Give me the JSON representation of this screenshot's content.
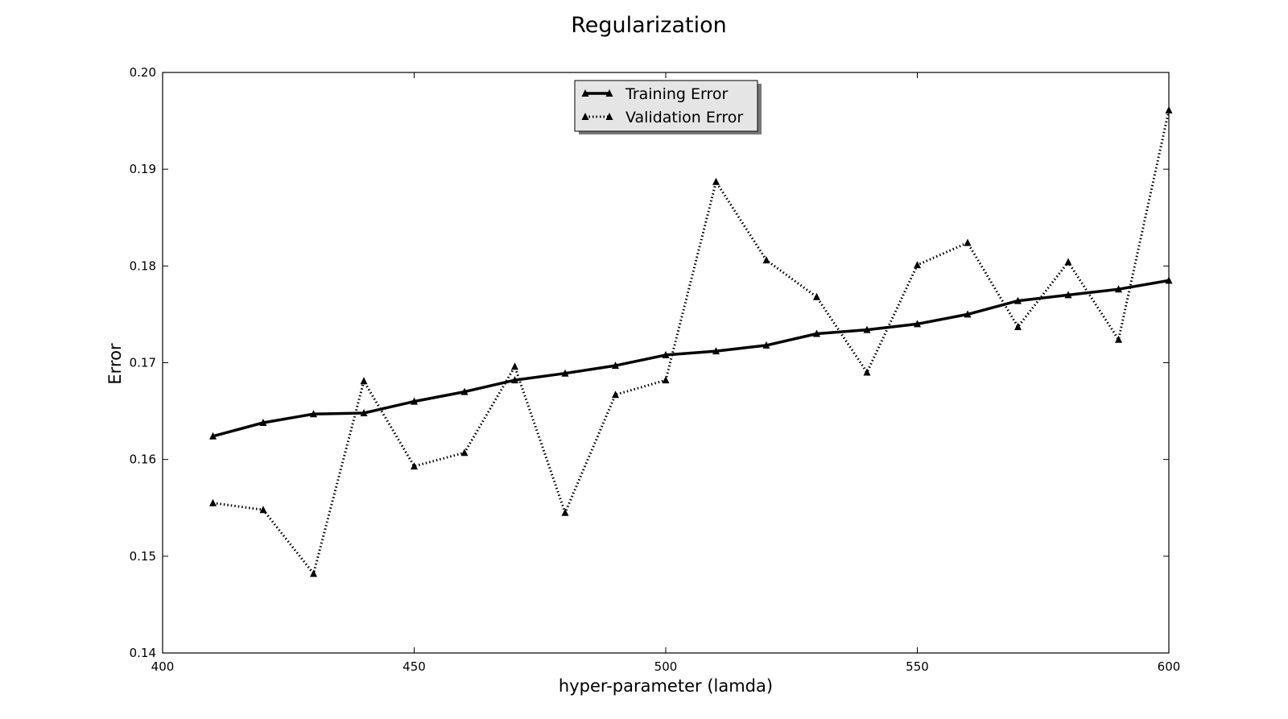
{
  "chart_data": {
    "type": "line",
    "title": "Regularization",
    "xlabel": "hyper-parameter (lamda)",
    "ylabel": "Error",
    "xlim": [
      400,
      600
    ],
    "ylim": [
      0.14,
      0.2
    ],
    "xticks": [
      "400",
      "450",
      "500",
      "550",
      "600"
    ],
    "yticks": [
      "0.14",
      "0.15",
      "0.16",
      "0.17",
      "0.18",
      "0.19",
      "0.20"
    ],
    "grid": false,
    "legend_position": "top-center",
    "x": [
      410,
      420,
      430,
      440,
      450,
      460,
      470,
      480,
      490,
      500,
      510,
      520,
      530,
      540,
      550,
      560,
      570,
      580,
      590,
      600
    ],
    "series": [
      {
        "name": "Training Error",
        "line_style": "solid",
        "marker": "triangle",
        "color": "#000000",
        "values": [
          0.1624,
          0.1638,
          0.1647,
          0.1648,
          0.166,
          0.167,
          0.1682,
          0.1689,
          0.1697,
          0.1708,
          0.1712,
          0.1718,
          0.173,
          0.1734,
          0.174,
          0.175,
          0.1764,
          0.177,
          0.1776,
          0.1785
        ]
      },
      {
        "name": "Validation Error",
        "line_style": "dotted",
        "marker": "triangle",
        "color": "#000000",
        "values": [
          0.1555,
          0.1548,
          0.1482,
          0.1681,
          0.1593,
          0.1607,
          0.1696,
          0.1545,
          0.1667,
          0.1682,
          0.1887,
          0.1806,
          0.1768,
          0.169,
          0.1801,
          0.1824,
          0.1737,
          0.1804,
          0.1724,
          0.1961
        ]
      }
    ]
  }
}
